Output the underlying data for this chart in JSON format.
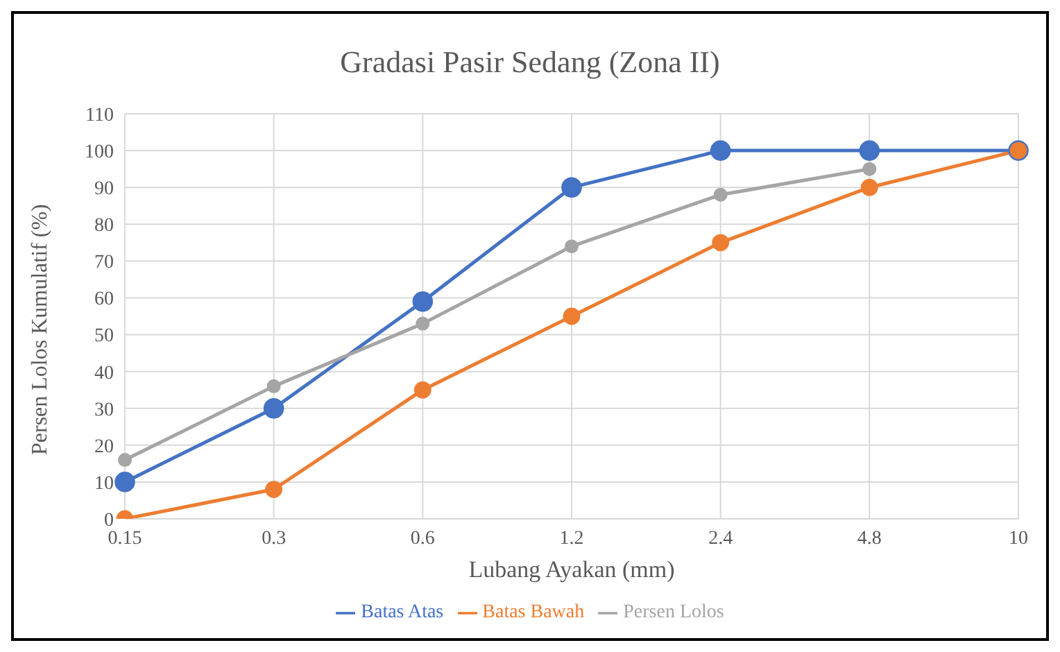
{
  "chart_data": {
    "type": "line",
    "title": "Gradasi Pasir Sedang (Zona II)",
    "xlabel": "Lubang Ayakan (mm)",
    "ylabel": "Persen Lolos Kumulatif (%)",
    "categories": [
      "0.15",
      "0.3",
      "0.6",
      "1.2",
      "2.4",
      "4.8",
      "10"
    ],
    "series": [
      {
        "name": "Batas Atas",
        "color": "#4472c4",
        "values": [
          10,
          30,
          59,
          90,
          100,
          100,
          100
        ]
      },
      {
        "name": "Batas Bawah",
        "color": "#ed7d31",
        "values": [
          0,
          8,
          35,
          55,
          75,
          90,
          100
        ]
      },
      {
        "name": "Persen Lolos",
        "color": "#a5a5a5",
        "values": [
          16,
          36,
          53,
          74,
          88,
          95,
          null
        ]
      }
    ],
    "ylim": [
      0,
      110
    ],
    "yticks": [
      0,
      10,
      20,
      30,
      40,
      50,
      60,
      70,
      80,
      90,
      100,
      110
    ],
    "grid": true,
    "legend": "bottom",
    "marker": "circle",
    "line_style": "solid"
  }
}
